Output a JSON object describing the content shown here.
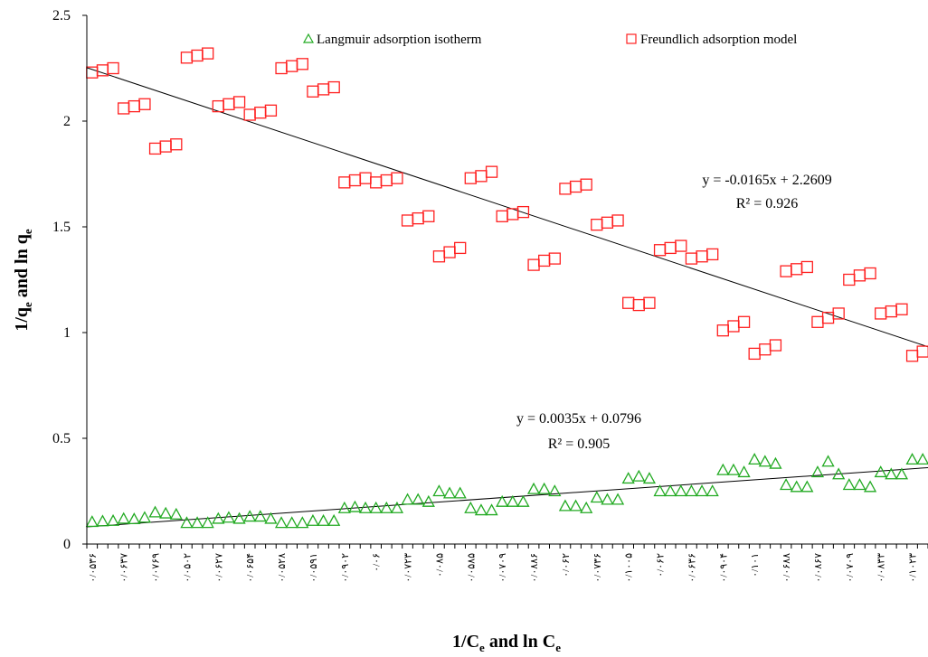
{
  "chart_data": {
    "type": "scatter",
    "title": "",
    "xlabel": {
      "main": "1/C",
      "sub1": "e",
      "mid": " and ln C",
      "sub2": "e"
    },
    "ylabel": {
      "main": "1/q",
      "sub1": "e",
      "mid": " and ln q",
      "sub2": "e"
    },
    "ylim": [
      0,
      2.5
    ],
    "yticks": [
      0,
      0.5,
      1,
      1.5,
      2,
      2.5
    ],
    "ytick_labels": [
      "0",
      "0.5",
      "1",
      "1.5",
      "2",
      "2.5"
    ],
    "xlim": [
      0.5,
      80.5
    ],
    "xtick_labels": [
      "۰/۰۵۳۶",
      "۰/۰۶۳۷",
      "۰/۰۷۶۹",
      "۰/۰۵۰۲",
      "۰/۰۶۲۷",
      "۰/۰۶۵۴",
      "۰/۰۵۲۸",
      "۰/۰۵۹۱",
      "۰/۰۹۰۲",
      "۰/۰۶",
      "۰/۰۷۲۳",
      "۰/۰۸۵",
      "۰/۰۵۸۵",
      "۰/۰۷۰۹",
      "۰/۰۸۸۶",
      "۰/۰۶۲",
      "۰/۰۷۳۶",
      "۰/۱۰۰۵",
      "۰/۰۶۲",
      "۰/۰۶۳۶",
      "۰/۰۹۰۴",
      "۰/۱۰۱",
      "۰/۰۶۸۸",
      "۰/۰۸۶۷",
      "۰/۰۷۰۹",
      "۰/۰۸۳۳",
      "۰/۱۰۲۳"
    ],
    "grid": false,
    "legend_position": "top",
    "series": [
      {
        "name": "Langmuir adsorption isotherm",
        "marker": "triangle",
        "color": "#22aa22",
        "x": [
          1,
          2,
          3,
          4,
          5,
          6,
          7,
          8,
          9,
          10,
          11,
          12,
          13,
          14,
          15,
          16,
          17,
          18,
          19,
          20,
          21,
          22,
          23,
          24,
          25,
          26,
          27,
          28,
          29,
          30,
          31,
          32,
          33,
          34,
          35,
          36,
          37,
          38,
          39,
          40,
          41,
          42,
          43,
          44,
          45,
          46,
          47,
          48,
          49,
          50,
          51,
          52,
          53,
          54,
          55,
          56,
          57,
          58,
          59,
          60,
          61,
          62,
          63,
          64,
          65,
          66,
          67,
          68,
          69,
          70,
          71,
          72,
          73,
          74,
          75,
          76,
          77,
          78,
          79,
          80
        ],
        "values": [
          0.105,
          0.108,
          0.11,
          0.12,
          0.118,
          0.125,
          0.15,
          0.145,
          0.14,
          0.1,
          0.1,
          0.1,
          0.12,
          0.125,
          0.12,
          0.13,
          0.13,
          0.12,
          0.1,
          0.1,
          0.1,
          0.11,
          0.11,
          0.11,
          0.17,
          0.175,
          0.17,
          0.17,
          0.17,
          0.17,
          0.21,
          0.21,
          0.2,
          0.25,
          0.24,
          0.24,
          0.17,
          0.16,
          0.16,
          0.2,
          0.2,
          0.2,
          0.26,
          0.26,
          0.25,
          0.18,
          0.18,
          0.17,
          0.22,
          0.21,
          0.21,
          0.31,
          0.32,
          0.31,
          0.25,
          0.25,
          0.25,
          0.25,
          0.25,
          0.25,
          0.35,
          0.35,
          0.34,
          0.4,
          0.39,
          0.38,
          0.28,
          0.27,
          0.27,
          0.34,
          0.39,
          0.33,
          0.28,
          0.28,
          0.27,
          0.34,
          0.33,
          0.33,
          0.4,
          0.4
        ]
      },
      {
        "name": "Freundlich adsorption model",
        "marker": "square",
        "color": "#ff2020",
        "x": [
          1,
          2,
          3,
          4,
          5,
          6,
          7,
          8,
          9,
          10,
          11,
          12,
          13,
          14,
          15,
          16,
          17,
          18,
          19,
          20,
          21,
          22,
          23,
          24,
          25,
          26,
          27,
          28,
          29,
          30,
          31,
          32,
          33,
          34,
          35,
          36,
          37,
          38,
          39,
          40,
          41,
          42,
          43,
          44,
          45,
          46,
          47,
          48,
          49,
          50,
          51,
          52,
          53,
          54,
          55,
          56,
          57,
          58,
          59,
          60,
          61,
          62,
          63,
          64,
          65,
          66,
          67,
          68,
          69,
          70,
          71,
          72,
          73,
          74,
          75,
          76,
          77,
          78,
          79,
          80
        ],
        "values": [
          2.23,
          2.24,
          2.25,
          2.06,
          2.07,
          2.08,
          1.87,
          1.88,
          1.89,
          2.3,
          2.31,
          2.32,
          2.07,
          2.08,
          2.09,
          2.03,
          2.04,
          2.05,
          2.25,
          2.26,
          2.27,
          2.14,
          2.15,
          2.16,
          1.71,
          1.72,
          1.73,
          1.71,
          1.72,
          1.73,
          1.53,
          1.54,
          1.55,
          1.36,
          1.38,
          1.4,
          1.73,
          1.74,
          1.76,
          1.55,
          1.56,
          1.57,
          1.32,
          1.34,
          1.35,
          1.68,
          1.69,
          1.7,
          1.51,
          1.52,
          1.53,
          1.14,
          1.13,
          1.14,
          1.39,
          1.4,
          1.41,
          1.35,
          1.36,
          1.37,
          1.01,
          1.03,
          1.05,
          0.9,
          0.92,
          0.94,
          1.29,
          1.3,
          1.31,
          1.05,
          1.07,
          1.09,
          1.25,
          1.27,
          1.28,
          1.09,
          1.1,
          1.11,
          0.89,
          0.91
        ]
      }
    ],
    "trendlines": [
      {
        "series": "Freundlich adsorption model",
        "slope": -0.0165,
        "intercept": 2.2609,
        "equation": "y = -0.0165x  + 2.2609",
        "r2": "R² = 0.926",
        "label_at": [
          64,
          1.7
        ]
      },
      {
        "series": "Langmuir adsorption isotherm",
        "slope": 0.0035,
        "intercept": 0.0796,
        "equation": "y = 0.0035x  + 0.0796",
        "r2": "R² = 0.905",
        "label_at": [
          45,
          0.42
        ]
      }
    ]
  }
}
